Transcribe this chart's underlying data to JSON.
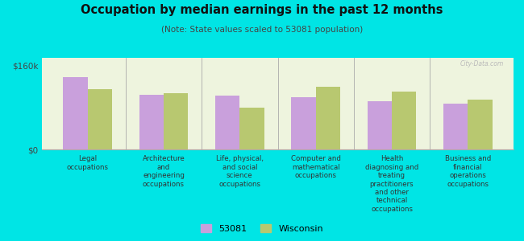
{
  "title": "Occupation by median earnings in the past 12 months",
  "subtitle": "(Note: State values scaled to 53081 population)",
  "background_color": "#00e5e5",
  "plot_bg": "#eef4de",
  "categories": [
    "Legal\noccupations",
    "Architecture\nand\nengineering\noccupations",
    "Life, physical,\nand social\nscience\noccupations",
    "Computer and\nmathematical\noccupations",
    "Health\ndiagnosing and\ntreating\npractitioners\nand other\ntechnical\noccupations",
    "Business and\nfinancial\noperations\noccupations"
  ],
  "values_53081": [
    138000,
    105000,
    103000,
    100000,
    92000,
    88000
  ],
  "values_wisconsin": [
    115000,
    107000,
    80000,
    120000,
    110000,
    95000
  ],
  "color_53081": "#c9a0dc",
  "color_wisconsin": "#b8c870",
  "ylim": [
    0,
    175000
  ],
  "yticks": [
    0,
    160000
  ],
  "ytick_labels": [
    "$0",
    "$160k"
  ],
  "legend_53081": "53081",
  "legend_wisconsin": "Wisconsin",
  "bar_width": 0.32,
  "watermark": "City-Data.com"
}
